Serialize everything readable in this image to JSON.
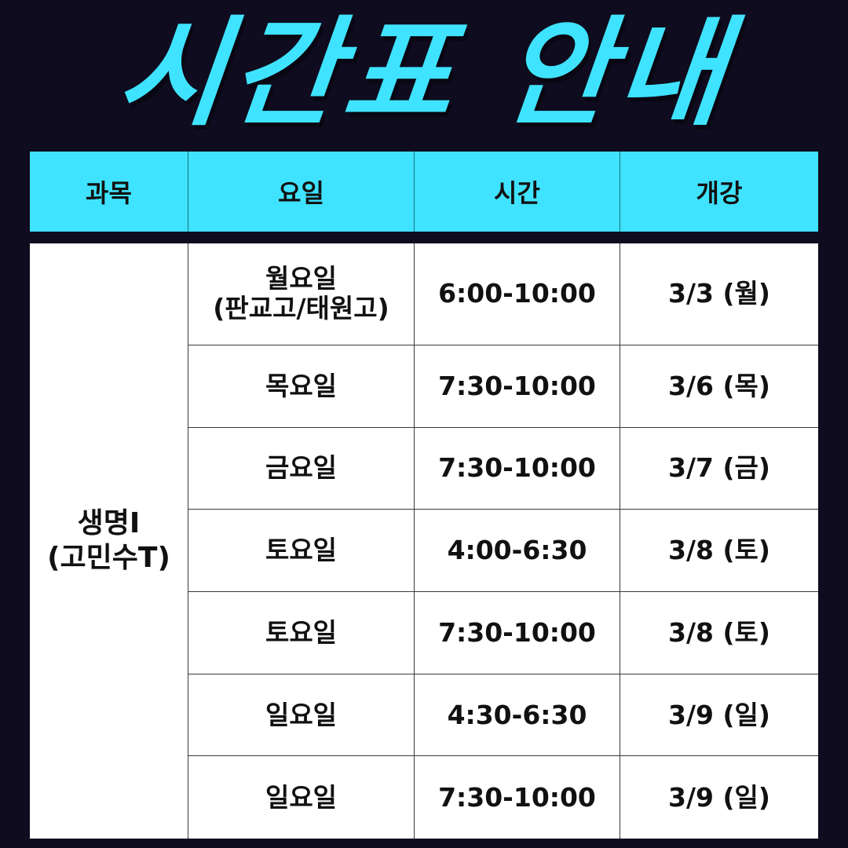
{
  "title": "시간표 안내",
  "header": {
    "subject": "과목",
    "day": "요일",
    "time": "시간",
    "start": "개강"
  },
  "subject": {
    "line1": "생명I",
    "line2": "(고민수T)"
  },
  "rows": [
    {
      "day_line1": "월요일",
      "day_line2": "(판교고/태원고)",
      "time": "6:00-10:00",
      "start": "3/3 (월)"
    },
    {
      "day_line1": "목요일",
      "day_line2": "",
      "time": "7:30-10:00",
      "start": "3/6 (목)"
    },
    {
      "day_line1": "금요일",
      "day_line2": "",
      "time": "7:30-10:00",
      "start": "3/7 (금)"
    },
    {
      "day_line1": "토요일",
      "day_line2": "",
      "time": "4:00-6:30",
      "start": "3/8 (토)"
    },
    {
      "day_line1": "토요일",
      "day_line2": "",
      "time": "7:30-10:00",
      "start": "3/8 (토)"
    },
    {
      "day_line1": "일요일",
      "day_line2": "",
      "time": "4:30-6:30",
      "start": "3/9 (일)"
    },
    {
      "day_line1": "일요일",
      "day_line2": "",
      "time": "7:30-10:00",
      "start": "3/9 (일)"
    }
  ],
  "colors": {
    "background": "#0e0c1e",
    "accent": "#3fe3ff",
    "table_bg": "#ffffff",
    "text": "#111111"
  }
}
